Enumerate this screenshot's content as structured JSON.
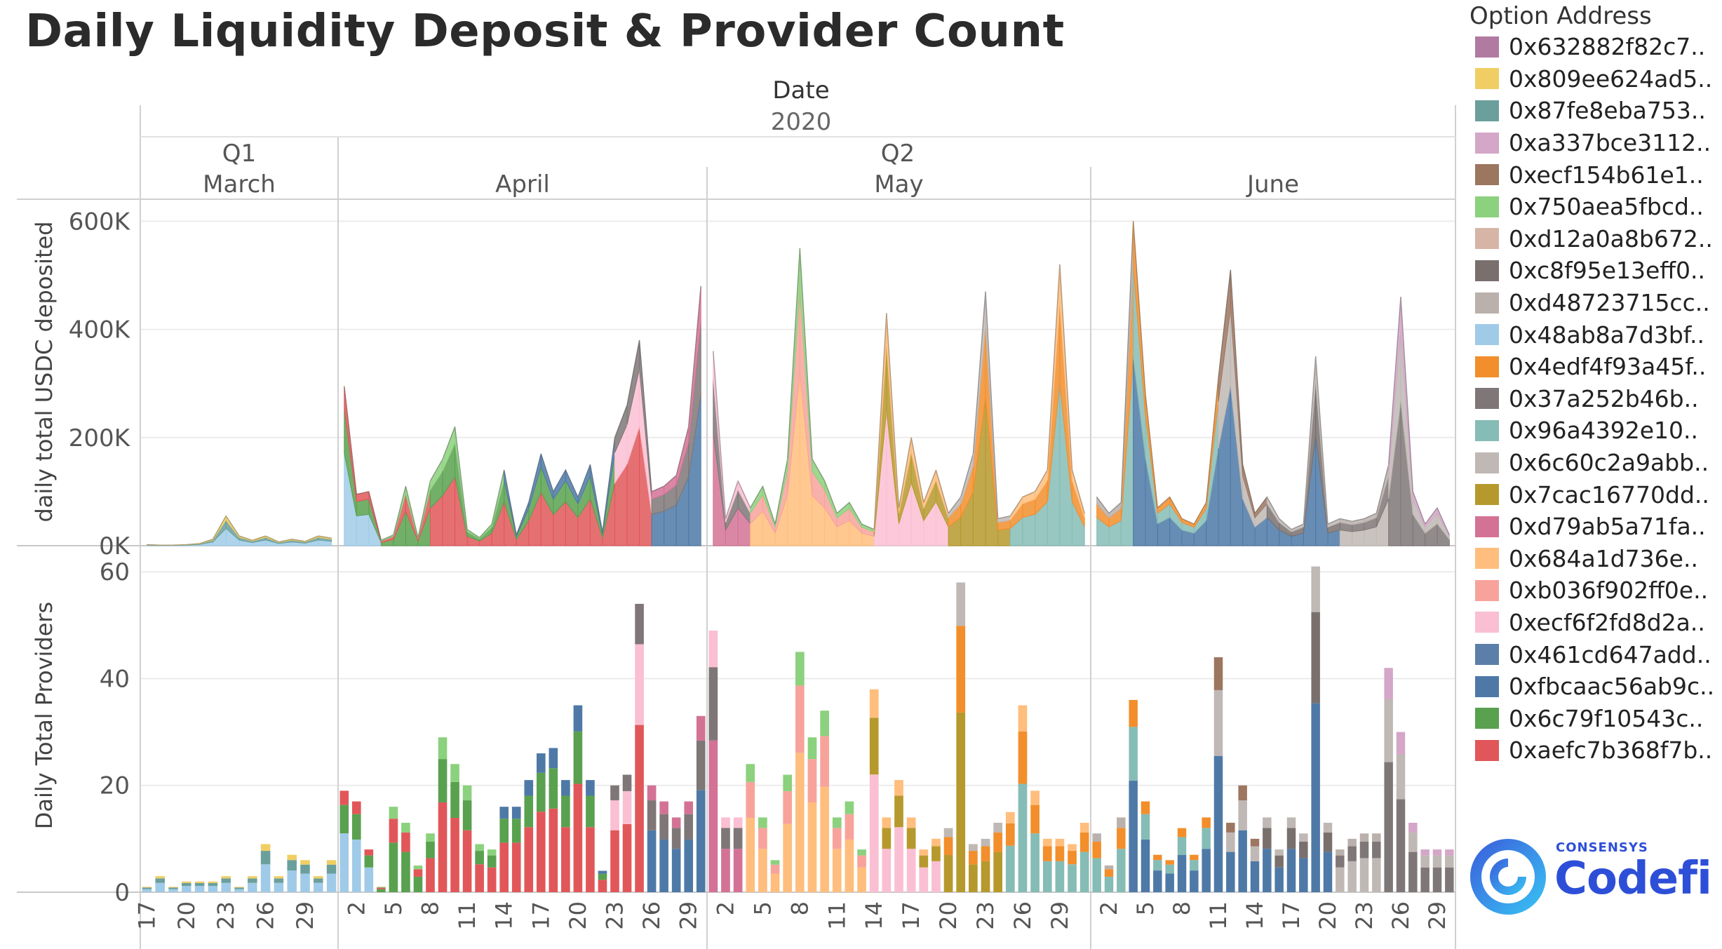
{
  "title": "Daily Liquidity Deposit & Provider Count",
  "colors": {
    "series": [
      "#b07aa1",
      "#f1ce63",
      "#6a9f9c",
      "#d4a6c8",
      "#9d7660",
      "#8cd17d",
      "#d7b5a6",
      "#79706e",
      "#bab0ac",
      "#a0cbe8",
      "#f28e2b",
      "#7f7777",
      "#86bcb6",
      "#bfb8b4",
      "#b6992d",
      "#d37295",
      "#ffbe7d",
      "#f7a39b",
      "#fabfd2",
      "#5b7fa8",
      "#4e79a7",
      "#59a14f",
      "#e15759"
    ]
  },
  "chart_data": {
    "type": "area_and_stacked_bar",
    "title": "Daily Liquidity Deposit & Provider Count",
    "column_header": {
      "label": "Date",
      "year": "2020",
      "quarters": [
        "Q1",
        "Q2"
      ],
      "months": [
        "March",
        "April",
        "May",
        "June"
      ]
    },
    "x_tick_labels": {
      "March": [
        "17",
        "20",
        "23",
        "26",
        "29"
      ],
      "April": [
        "2",
        "5",
        "8",
        "11",
        "14",
        "17",
        "20",
        "23",
        "26",
        "29"
      ],
      "May": [
        "2",
        "5",
        "8",
        "11",
        "14",
        "17",
        "20",
        "23",
        "26",
        "29"
      ],
      "June": [
        "2",
        "5",
        "8",
        "11",
        "14",
        "17",
        "20",
        "23",
        "26",
        "29"
      ]
    },
    "top_panel": {
      "ylabel": "daily total USDC deposited",
      "ylim": [
        0,
        620000
      ],
      "yticks": [
        {
          "value": 0,
          "label": "0K"
        },
        {
          "value": 200000,
          "label": "200K"
        },
        {
          "value": 400000,
          "label": "400K"
        },
        {
          "value": 600000,
          "label": "600K"
        }
      ]
    },
    "bottom_panel": {
      "ylabel": "Daily Total Providers",
      "ylim": [
        0,
        62
      ],
      "yticks": [
        {
          "value": 0,
          "label": "0"
        },
        {
          "value": 20,
          "label": "20"
        },
        {
          "value": 40,
          "label": "40"
        },
        {
          "value": 60,
          "label": "60"
        }
      ]
    },
    "legend": {
      "title": "Option Address",
      "entries": [
        "0x632882f82c7..",
        "0x809ee624ad5..",
        "0x87fe8eba753..",
        "0xa337bce3112..",
        "0xecf154b61e1..",
        "0x750aea5fbcd..",
        "0xd12a0a8b672..",
        "0xc8f95e13eff0..",
        "0xd48723715cc..",
        "0x48ab8a7d3bf..",
        "0x4edf4f93a45f..",
        "0x37a252b46b..",
        "0x96a4392e10..",
        "0x6c60c2a9abb..",
        "0x7cac16770dd..",
        "0xd79ab5a71fa..",
        "0x684a1d736e..",
        "0xb036f902ff0e..",
        "0xecf6f2fd8d2a..",
        "0x461cd647add..",
        "0xfbcaac56ab9c..",
        "0x6c79f10543c..",
        "0xaefc7b368f7b.."
      ]
    },
    "deposits_total": {
      "March": [
        [
          17,
          2000
        ],
        [
          18,
          1000
        ],
        [
          19,
          1000
        ],
        [
          20,
          2000
        ],
        [
          21,
          4000
        ],
        [
          22,
          12000
        ],
        [
          23,
          55000
        ],
        [
          24,
          18000
        ],
        [
          25,
          10000
        ],
        [
          26,
          18000
        ],
        [
          27,
          7000
        ],
        [
          28,
          12000
        ],
        [
          29,
          8000
        ],
        [
          30,
          18000
        ],
        [
          31,
          14000
        ]
      ],
      "April": [
        [
          1,
          295000
        ],
        [
          2,
          95000
        ],
        [
          3,
          100000
        ],
        [
          4,
          10000
        ],
        [
          5,
          20000
        ],
        [
          6,
          110000
        ],
        [
          7,
          15000
        ],
        [
          8,
          120000
        ],
        [
          9,
          160000
        ],
        [
          10,
          220000
        ],
        [
          11,
          30000
        ],
        [
          12,
          15000
        ],
        [
          13,
          40000
        ],
        [
          14,
          140000
        ],
        [
          15,
          20000
        ],
        [
          16,
          80000
        ],
        [
          17,
          170000
        ],
        [
          18,
          100000
        ],
        [
          19,
          140000
        ],
        [
          20,
          90000
        ],
        [
          21,
          150000
        ],
        [
          22,
          25000
        ],
        [
          23,
          200000
        ],
        [
          24,
          260000
        ],
        [
          25,
          380000
        ],
        [
          26,
          100000
        ],
        [
          27,
          110000
        ],
        [
          28,
          130000
        ],
        [
          29,
          220000
        ],
        [
          30,
          480000
        ]
      ],
      "May": [
        [
          1,
          360000
        ],
        [
          2,
          50000
        ],
        [
          3,
          120000
        ],
        [
          4,
          70000
        ],
        [
          5,
          110000
        ],
        [
          6,
          40000
        ],
        [
          7,
          160000
        ],
        [
          8,
          550000
        ],
        [
          9,
          160000
        ],
        [
          10,
          120000
        ],
        [
          11,
          60000
        ],
        [
          12,
          80000
        ],
        [
          13,
          40000
        ],
        [
          14,
          30000
        ],
        [
          15,
          430000
        ],
        [
          16,
          70000
        ],
        [
          17,
          200000
        ],
        [
          18,
          80000
        ],
        [
          19,
          140000
        ],
        [
          20,
          60000
        ],
        [
          21,
          90000
        ],
        [
          22,
          170000
        ],
        [
          23,
          470000
        ],
        [
          24,
          50000
        ],
        [
          25,
          55000
        ],
        [
          26,
          90000
        ],
        [
          27,
          100000
        ],
        [
          28,
          140000
        ],
        [
          29,
          520000
        ],
        [
          30,
          140000
        ],
        [
          31,
          60000
        ]
      ],
      "June": [
        [
          1,
          90000
        ],
        [
          2,
          60000
        ],
        [
          3,
          80000
        ],
        [
          4,
          600000
        ],
        [
          5,
          280000
        ],
        [
          6,
          70000
        ],
        [
          7,
          90000
        ],
        [
          8,
          50000
        ],
        [
          9,
          40000
        ],
        [
          10,
          80000
        ],
        [
          11,
          310000
        ],
        [
          12,
          510000
        ],
        [
          13,
          150000
        ],
        [
          14,
          60000
        ],
        [
          15,
          90000
        ],
        [
          16,
          50000
        ],
        [
          17,
          30000
        ],
        [
          18,
          40000
        ],
        [
          19,
          350000
        ],
        [
          20,
          40000
        ],
        [
          21,
          50000
        ],
        [
          22,
          45000
        ],
        [
          23,
          50000
        ],
        [
          24,
          60000
        ],
        [
          25,
          150000
        ],
        [
          26,
          460000
        ],
        [
          27,
          100000
        ],
        [
          28,
          40000
        ],
        [
          29,
          70000
        ],
        [
          30,
          20000
        ]
      ]
    },
    "providers_total": {
      "March": [
        [
          17,
          1
        ],
        [
          18,
          3
        ],
        [
          19,
          1
        ],
        [
          20,
          2
        ],
        [
          21,
          2
        ],
        [
          22,
          2
        ],
        [
          23,
          3
        ],
        [
          24,
          1
        ],
        [
          25,
          3
        ],
        [
          26,
          9
        ],
        [
          27,
          3
        ],
        [
          28,
          7
        ],
        [
          29,
          6
        ],
        [
          30,
          3
        ],
        [
          31,
          6
        ]
      ],
      "April": [
        [
          1,
          19
        ],
        [
          2,
          17
        ],
        [
          3,
          8
        ],
        [
          4,
          1
        ],
        [
          5,
          16
        ],
        [
          6,
          13
        ],
        [
          7,
          5
        ],
        [
          8,
          11
        ],
        [
          9,
          29
        ],
        [
          10,
          24
        ],
        [
          11,
          20
        ],
        [
          12,
          9
        ],
        [
          13,
          8
        ],
        [
          14,
          16
        ],
        [
          15,
          16
        ],
        [
          16,
          21
        ],
        [
          17,
          26
        ],
        [
          18,
          27
        ],
        [
          19,
          21
        ],
        [
          20,
          35
        ],
        [
          21,
          21
        ],
        [
          22,
          4
        ],
        [
          23,
          20
        ],
        [
          24,
          22
        ],
        [
          25,
          54
        ],
        [
          26,
          20
        ],
        [
          27,
          17
        ],
        [
          28,
          14
        ],
        [
          29,
          17
        ],
        [
          30,
          33
        ]
      ],
      "May": [
        [
          1,
          49
        ],
        [
          2,
          14
        ],
        [
          3,
          14
        ],
        [
          4,
          24
        ],
        [
          5,
          14
        ],
        [
          6,
          6
        ],
        [
          7,
          22
        ],
        [
          8,
          45
        ],
        [
          9,
          29
        ],
        [
          10,
          34
        ],
        [
          11,
          14
        ],
        [
          12,
          17
        ],
        [
          13,
          8
        ],
        [
          14,
          38
        ],
        [
          15,
          14
        ],
        [
          16,
          21
        ],
        [
          17,
          14
        ],
        [
          18,
          8
        ],
        [
          19,
          10
        ],
        [
          20,
          12
        ],
        [
          21,
          58
        ],
        [
          22,
          9
        ],
        [
          23,
          10
        ],
        [
          24,
          13
        ],
        [
          25,
          15
        ],
        [
          26,
          35
        ],
        [
          27,
          19
        ],
        [
          28,
          10
        ],
        [
          29,
          10
        ],
        [
          30,
          9
        ],
        [
          31,
          13
        ]
      ],
      "June": [
        [
          1,
          11
        ],
        [
          2,
          5
        ],
        [
          3,
          14
        ],
        [
          4,
          36
        ],
        [
          5,
          17
        ],
        [
          6,
          7
        ],
        [
          7,
          6
        ],
        [
          8,
          12
        ],
        [
          9,
          7
        ],
        [
          10,
          14
        ],
        [
          11,
          44
        ],
        [
          12,
          13
        ],
        [
          13,
          20
        ],
        [
          14,
          10
        ],
        [
          15,
          14
        ],
        [
          16,
          8
        ],
        [
          17,
          14
        ],
        [
          18,
          11
        ],
        [
          19,
          61
        ],
        [
          20,
          13
        ],
        [
          21,
          8
        ],
        [
          22,
          10
        ],
        [
          23,
          11
        ],
        [
          24,
          11
        ],
        [
          25,
          42
        ],
        [
          26,
          30
        ],
        [
          27,
          13
        ],
        [
          28,
          8
        ],
        [
          29,
          8
        ],
        [
          30,
          8
        ]
      ]
    }
  }
}
